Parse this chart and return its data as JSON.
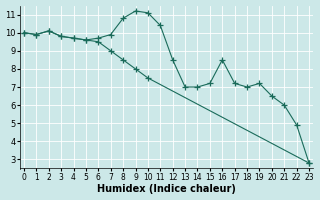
{
  "xlabel": "Humidex (Indice chaleur)",
  "background_color": "#cce8e8",
  "grid_color": "#ffffff",
  "line_color": "#1a6b5a",
  "x_line1": [
    0,
    1,
    2,
    3,
    4,
    5,
    6,
    7,
    8,
    9,
    10,
    11,
    12,
    13,
    14,
    15,
    16,
    17,
    18,
    19,
    20,
    21,
    22,
    23
  ],
  "y_line1": [
    10.0,
    9.9,
    10.1,
    9.8,
    9.7,
    9.6,
    9.7,
    9.9,
    10.8,
    11.2,
    11.1,
    10.4,
    8.5,
    7.0,
    7.0,
    7.2,
    8.5,
    7.2,
    7.0,
    7.2,
    6.5,
    6.0,
    4.9,
    2.8
  ],
  "x_line2": [
    0,
    1,
    2,
    3,
    4,
    5,
    6,
    7,
    8,
    9,
    10,
    23
  ],
  "y_line2": [
    10.0,
    9.9,
    10.1,
    9.8,
    9.7,
    9.6,
    9.5,
    9.0,
    8.5,
    8.0,
    7.5,
    2.8
  ],
  "xlim": [
    0,
    23
  ],
  "ylim": [
    2.5,
    11.5
  ],
  "yticks": [
    3,
    4,
    5,
    6,
    7,
    8,
    9,
    10,
    11
  ],
  "xtick_labels": [
    "0",
    "1",
    "2",
    "3",
    "4",
    "5",
    "6",
    "7",
    "8",
    "9",
    "10",
    "11",
    "12",
    "13",
    "14",
    "15",
    "16",
    "17",
    "18",
    "19",
    "20",
    "21",
    "22",
    "23"
  ],
  "marker": "+",
  "markersize": 4,
  "linewidth": 0.8
}
